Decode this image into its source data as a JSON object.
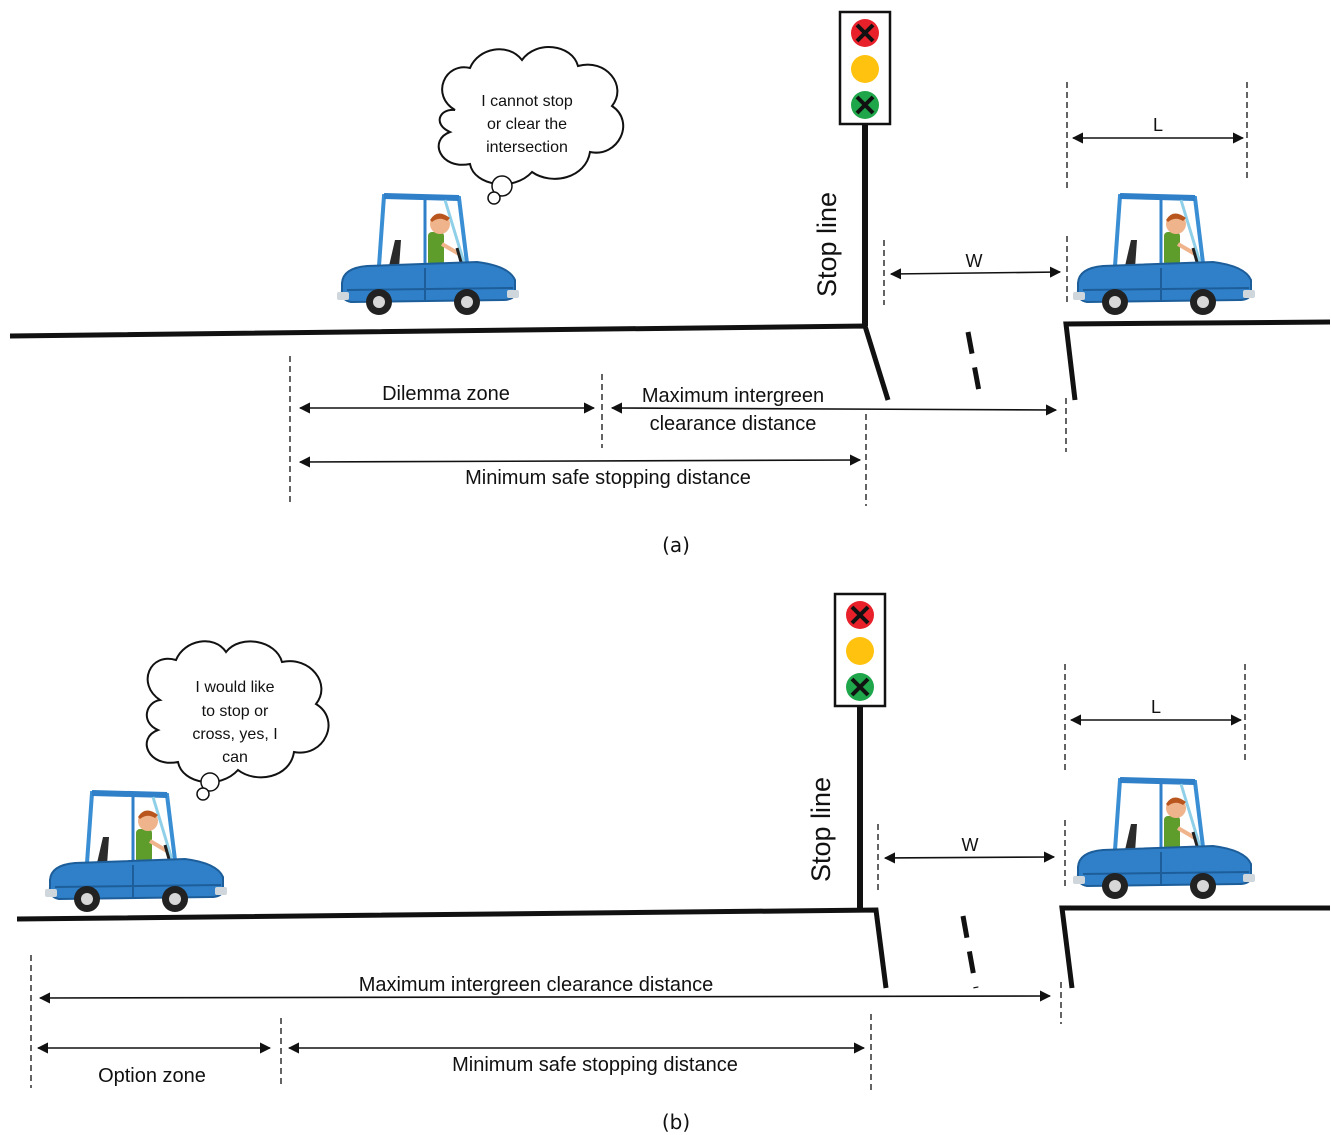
{
  "panels": [
    {
      "caption": "(a)",
      "thought": [
        "I cannot stop",
        "or clear the",
        "intersection"
      ],
      "stop_line_label": "Stop line",
      "w_label": "W",
      "l_label": "L",
      "zone_label": "Dilemma zone",
      "clearance_label": [
        "Maximum intergreen",
        "clearance distance"
      ],
      "stopping_label": "Minimum safe stopping distance"
    },
    {
      "caption": "(b)",
      "thought": [
        "I would like",
        "to stop or",
        "cross, yes, I",
        "can"
      ],
      "stop_line_label": "Stop line",
      "w_label": "W",
      "l_label": "L",
      "zone_label": "Option zone",
      "clearance_label": [
        "Maximum intergreen clearance distance"
      ],
      "stopping_label": "Minimum safe stopping distance"
    }
  ],
  "colors": {
    "car_body": "#2f80c8",
    "car_dark": "#1d5e9a",
    "light_red": "#e8202a",
    "light_amber": "#ffc20e",
    "light_green": "#1fa64a",
    "road": "#111111"
  }
}
